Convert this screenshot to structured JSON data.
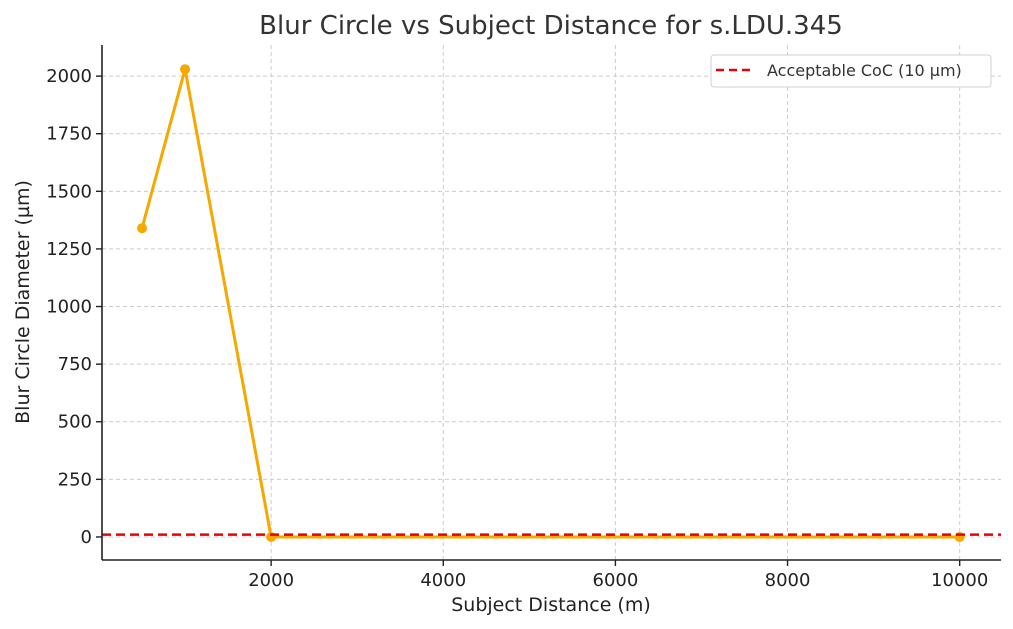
{
  "chart_data": {
    "type": "line",
    "title": "Blur Circle vs Subject Distance for s.LDU.345",
    "xlabel": "Subject Distance (m)",
    "ylabel": "Blur Circle Diameter (µm)",
    "xlim": [
      35,
      10480
    ],
    "ylim": [
      -100,
      2135
    ],
    "xticks": [
      2000,
      4000,
      6000,
      8000,
      10000
    ],
    "xtick_labels": [
      "2000",
      "4000",
      "6000",
      "8000",
      "10000"
    ],
    "yticks": [
      0,
      250,
      500,
      750,
      1000,
      1250,
      1500,
      1750,
      2000
    ],
    "ytick_labels": [
      "0",
      "250",
      "500",
      "750",
      "1000",
      "1250",
      "1500",
      "1750",
      "2000"
    ],
    "grid": true,
    "legend_position": "upper right",
    "series": [
      {
        "name": "Blur Circle Diameter",
        "color": "#f5a800",
        "style": "solid",
        "marker": "o",
        "x": [
          500,
          1000,
          2000,
          10000
        ],
        "y": [
          1340,
          2030,
          0,
          0
        ]
      },
      {
        "name": "Acceptable CoC (10 µm)",
        "color": "#e8000b",
        "style": "dashed",
        "marker": null,
        "type": "hline",
        "y": 10
      }
    ],
    "legend": [
      "Acceptable CoC (10 µm)"
    ]
  }
}
